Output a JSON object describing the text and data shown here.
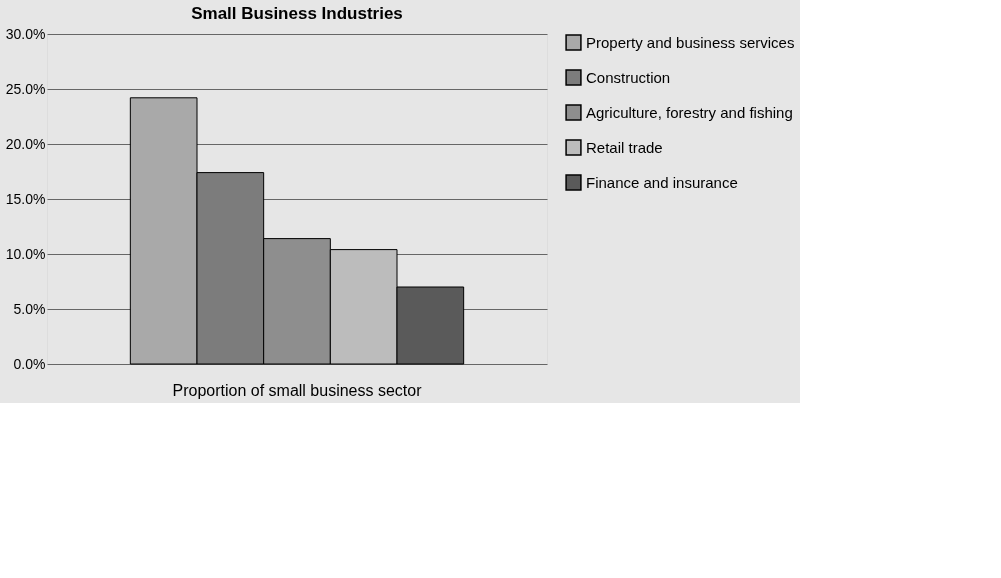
{
  "chart_data": {
    "type": "bar",
    "title": "Small Business Industries",
    "categories": [
      "Proportion of small business sector"
    ],
    "series": [
      {
        "name": "Property and business services",
        "color": "#a9a9a9",
        "values": [
          24.2
        ]
      },
      {
        "name": "Construction",
        "color": "#7c7c7c",
        "values": [
          17.4
        ]
      },
      {
        "name": "Agriculture, forestry and fishing",
        "color": "#8e8e8e",
        "values": [
          11.4
        ]
      },
      {
        "name": "Retail trade",
        "color": "#bcbcbc",
        "values": [
          10.4
        ]
      },
      {
        "name": "Finance and insurance",
        "color": "#5a5a5a",
        "values": [
          7.0
        ]
      }
    ],
    "ylim": [
      0,
      30
    ],
    "yticks": [
      {
        "value": 0,
        "label": "0.0%"
      },
      {
        "value": 5,
        "label": "5.0%"
      },
      {
        "value": 10,
        "label": "10.0%"
      },
      {
        "value": 15,
        "label": "15.0%"
      },
      {
        "value": 20,
        "label": "20.0%"
      },
      {
        "value": 25,
        "label": "25.0%"
      },
      {
        "value": 30,
        "label": "30.0%"
      }
    ],
    "grid": "y",
    "legend": "right"
  }
}
